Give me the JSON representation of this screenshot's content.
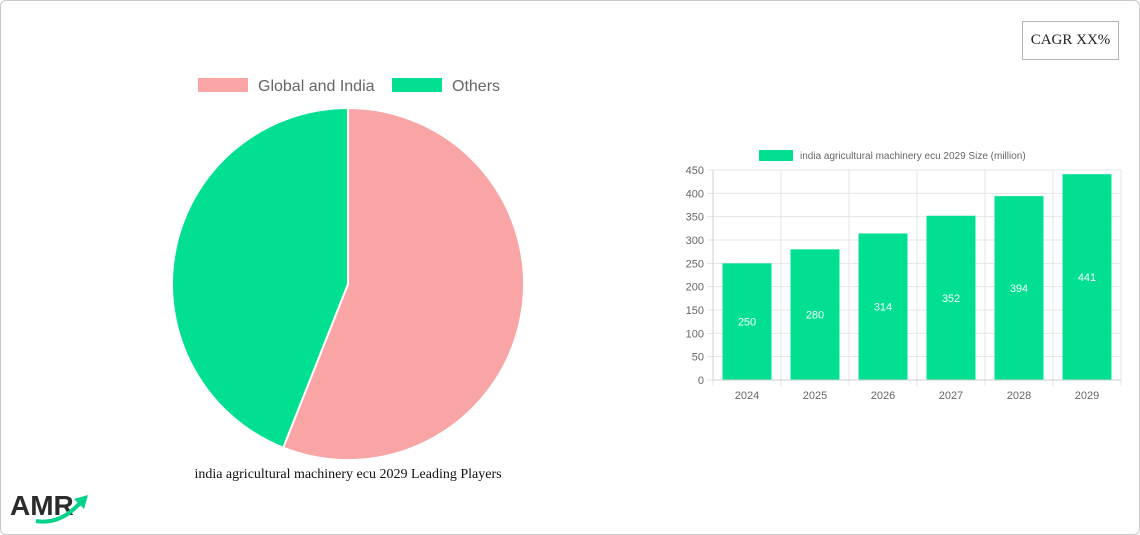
{
  "cagr_label": "CAGR XX%",
  "pie_caption": "india agricultural machinery ecu 2029 Leading Players",
  "logo_text": "AMR",
  "colors": {
    "pink": "#f9a5a5",
    "green": "#00e090",
    "grid": "#e5e5e5",
    "axis_text": "#666666"
  },
  "chart_data": [
    {
      "type": "pie",
      "title": "india agricultural machinery ecu 2029 Leading Players",
      "categories": [
        "Global and India",
        "Others"
      ],
      "values": [
        56,
        44
      ],
      "colors": [
        "#f9a5a5",
        "#00e090"
      ],
      "legend": "top"
    },
    {
      "type": "bar",
      "title": "",
      "series": [
        {
          "name": "india agricultural machinery ecu 2029 Size (million)",
          "values": [
            250,
            280,
            314,
            352,
            394,
            441
          ]
        }
      ],
      "categories": [
        "2024",
        "2025",
        "2026",
        "2027",
        "2028",
        "2029"
      ],
      "ylim": [
        0,
        450
      ],
      "yticks": [
        0,
        50,
        100,
        150,
        200,
        250,
        300,
        350,
        400,
        450
      ],
      "xlabel": "",
      "ylabel": "",
      "grid": true,
      "legend": "top"
    }
  ]
}
